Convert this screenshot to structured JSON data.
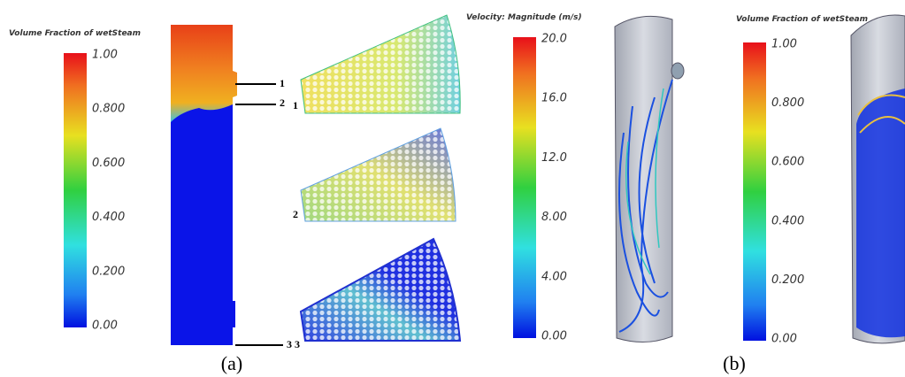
{
  "colorbars": [
    {
      "title": "Volume Fraction of wetSteam",
      "ticks": [
        "1.00",
        "0.800",
        "0.600",
        "0.400",
        "0.200",
        "0.00"
      ]
    },
    {
      "title": "Velocity: Magnitude (m/s)",
      "ticks": [
        "20.0",
        "16.0",
        "12.0",
        "8.00",
        "4.00",
        "0.00"
      ]
    },
    {
      "title": "Volume Fraction of wetSteam",
      "ticks": [
        "1.00",
        "0.800",
        "0.600",
        "0.400",
        "0.200",
        "0.00"
      ]
    }
  ],
  "section_labels": {
    "column_1": "1",
    "column_2": "2",
    "column_3": "3",
    "sector_1": "1",
    "sector_2": "2",
    "sector_3": "3"
  },
  "panel_labels": [
    "(a)",
    "(b)"
  ]
}
